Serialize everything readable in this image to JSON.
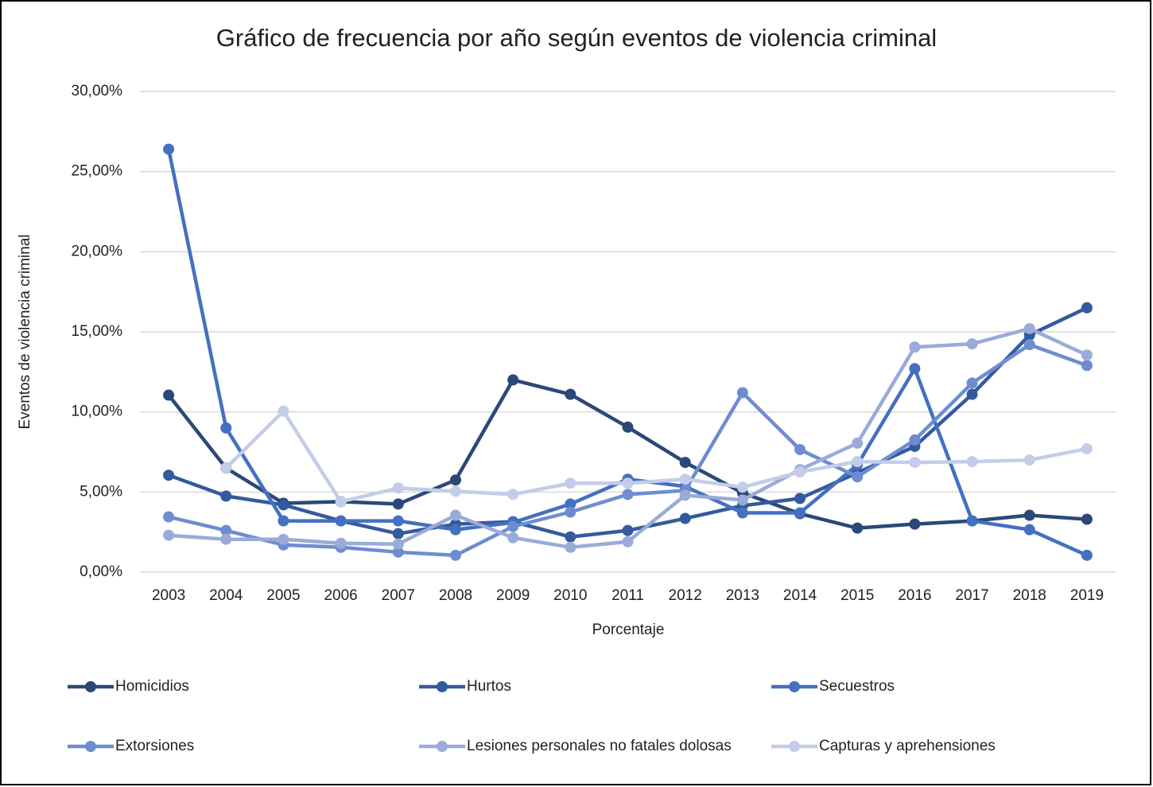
{
  "chart_data": {
    "type": "line",
    "title": "Gráfico de frecuencia por año según eventos de violencia criminal",
    "x_label": "Porcentaje",
    "y_label": "Eventos de violencia criminal",
    "categories": [
      "2003",
      "2004",
      "2005",
      "2006",
      "2007",
      "2008",
      "2009",
      "2010",
      "2011",
      "2012",
      "2013",
      "2014",
      "2015",
      "2016",
      "2017",
      "2018",
      "2019"
    ],
    "ylim": [
      0,
      30
    ],
    "yticks": [
      {
        "value": 0,
        "label": "0,00%"
      },
      {
        "value": 5,
        "label": "5,00%"
      },
      {
        "value": 10,
        "label": "10,00%"
      },
      {
        "value": 15,
        "label": "15,00%"
      },
      {
        "value": 20,
        "label": "20,00%"
      },
      {
        "value": 25,
        "label": "25,00%"
      },
      {
        "value": 30,
        "label": "30,00%"
      }
    ],
    "grid": true,
    "legend": "bottom",
    "series": [
      {
        "name": "Homicidios",
        "color": "#2b4878",
        "values": [
          11.05,
          6.5,
          4.3,
          4.4,
          4.25,
          5.75,
          12.0,
          11.1,
          9.05,
          6.85,
          4.95,
          3.65,
          2.75,
          3.0,
          3.2,
          3.55,
          3.3
        ]
      },
      {
        "name": "Hurtos",
        "color": "#345a9e",
        "values": [
          6.05,
          4.75,
          4.2,
          3.2,
          2.4,
          3.0,
          3.15,
          2.2,
          2.6,
          3.35,
          4.15,
          4.6,
          6.2,
          7.85,
          11.1,
          14.8,
          16.5
        ]
      },
      {
        "name": "Secuestros",
        "color": "#4470c0",
        "values": [
          26.4,
          9.0,
          3.2,
          3.2,
          3.2,
          2.65,
          3.1,
          4.25,
          5.8,
          5.35,
          3.7,
          3.7,
          6.7,
          12.7,
          3.2,
          2.65,
          1.05
        ]
      },
      {
        "name": "Extorsiones",
        "color": "#6e8dd0",
        "values": [
          3.45,
          2.6,
          1.7,
          1.55,
          1.25,
          1.05,
          2.85,
          3.75,
          4.85,
          5.1,
          11.2,
          7.65,
          5.95,
          8.25,
          11.8,
          14.2,
          12.9
        ]
      },
      {
        "name": "Lesiones personales no fatales dolosas",
        "color": "#9aabd9",
        "values": [
          2.3,
          2.05,
          2.05,
          1.8,
          1.75,
          3.55,
          2.15,
          1.55,
          1.9,
          4.8,
          4.5,
          6.4,
          8.05,
          14.05,
          14.25,
          15.2,
          13.55
        ]
      },
      {
        "name": "Capturas y aprehensiones",
        "color": "#c3cce8",
        "values": [
          null,
          6.5,
          10.05,
          4.4,
          5.25,
          5.05,
          4.85,
          5.55,
          5.55,
          5.8,
          5.3,
          6.25,
          6.9,
          6.85,
          6.9,
          7.0,
          7.7
        ]
      }
    ]
  }
}
